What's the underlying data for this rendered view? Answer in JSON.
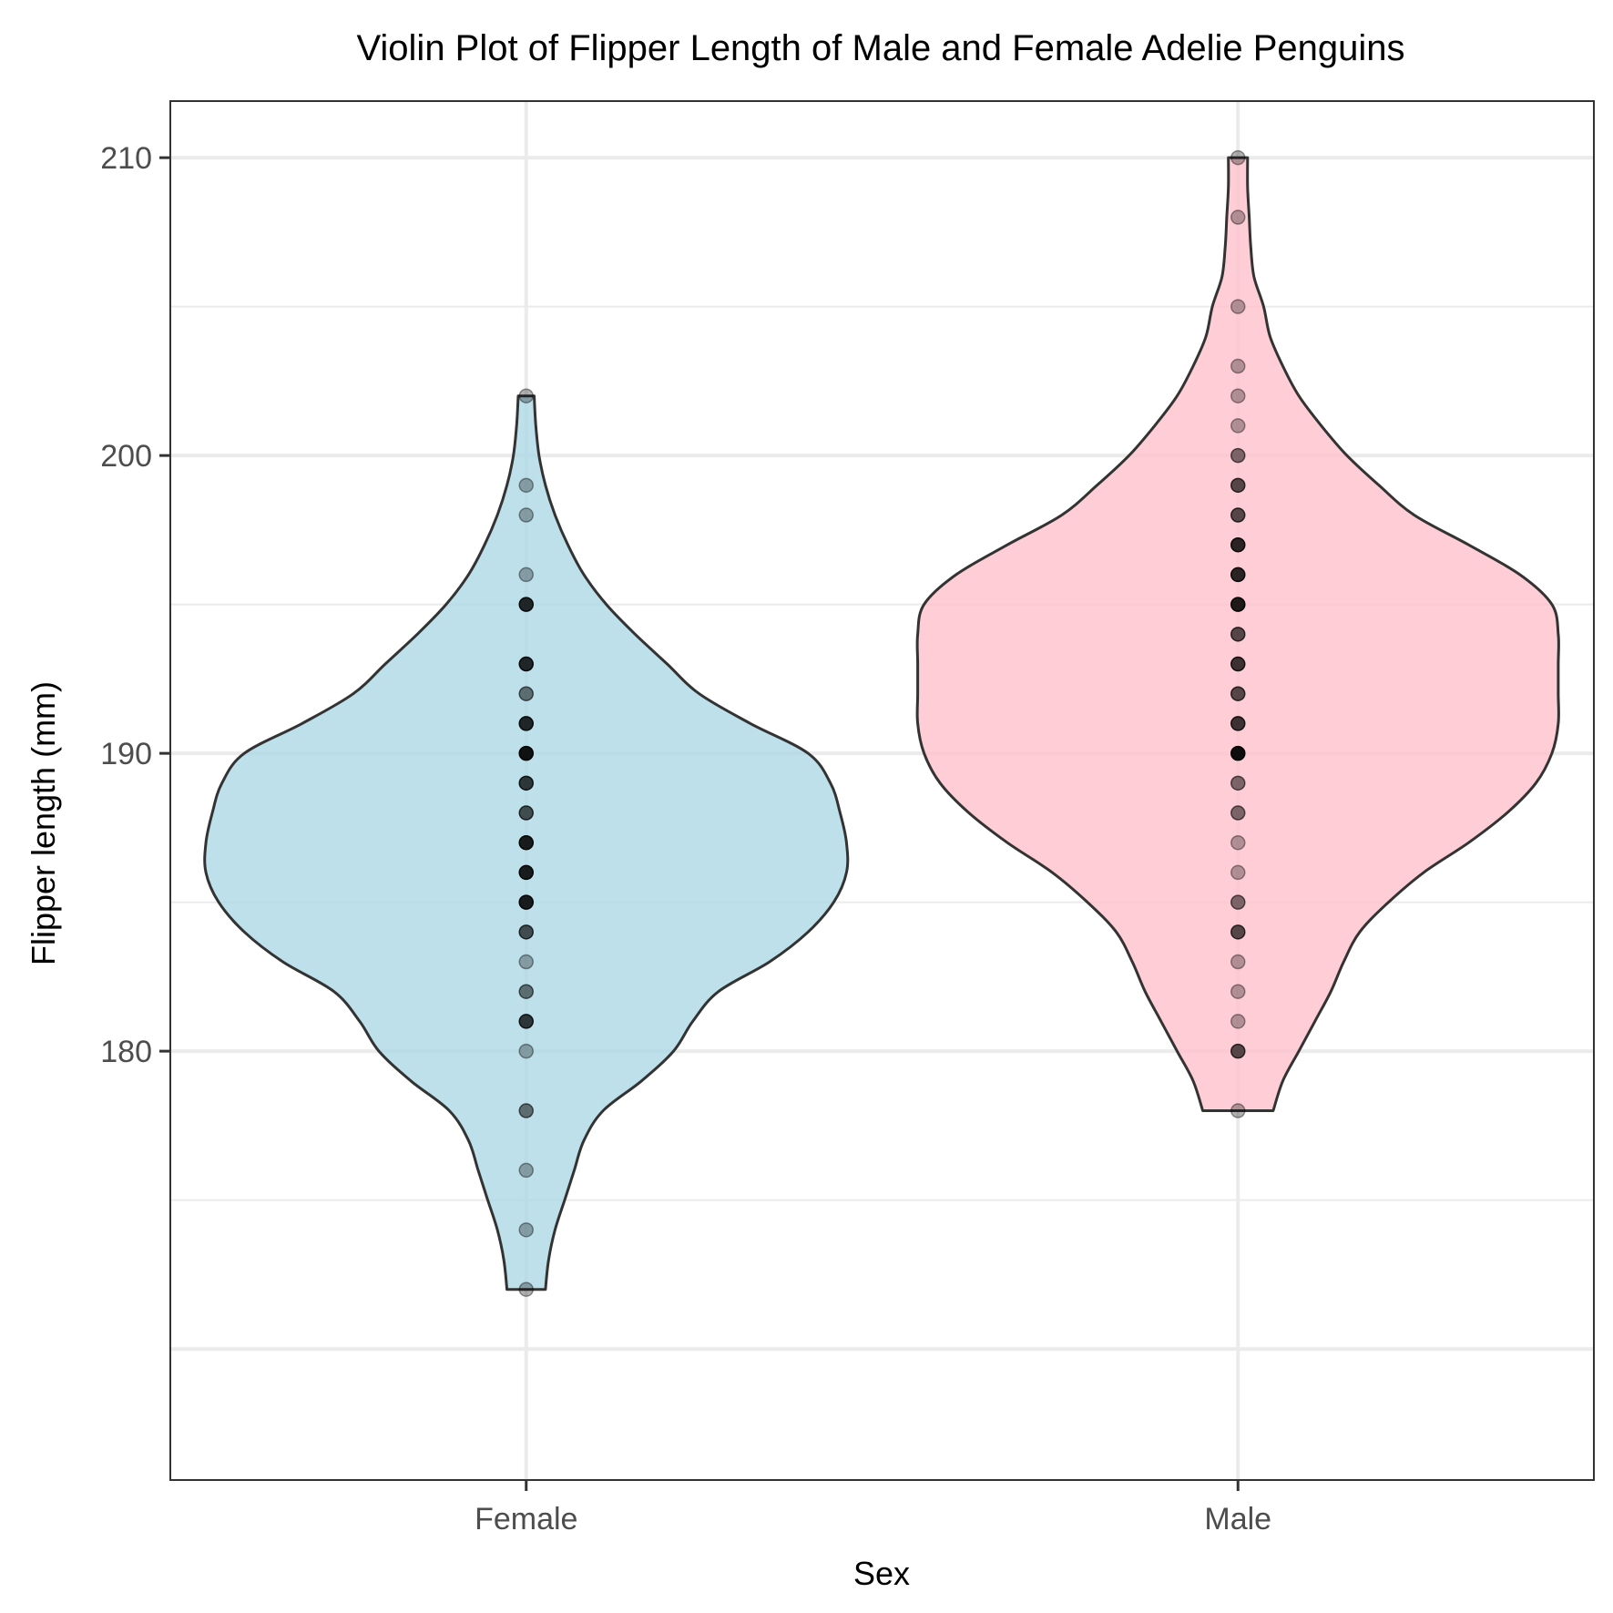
{
  "chart_data": {
    "type": "violin",
    "title": "Violin Plot of Flipper Length of Male and Female Adelie Penguins",
    "xlabel": "Sex",
    "ylabel": "Flipper length (mm)",
    "categories": [
      "Female",
      "Male"
    ],
    "ylim": [
      165.6,
      211.9
    ],
    "y_ticks": [
      180,
      190,
      200,
      210
    ],
    "y_tick_labels": [
      "180",
      "190",
      "200",
      "210"
    ],
    "grid": true,
    "series": [
      {
        "category": "Female",
        "fill": "#add8e6",
        "range": [
          172,
          202
        ],
        "density_profile": [
          [
            172,
            0.06
          ],
          [
            173,
            0.07
          ],
          [
            174,
            0.09
          ],
          [
            175,
            0.12
          ],
          [
            176,
            0.15
          ],
          [
            177,
            0.18
          ],
          [
            178,
            0.24
          ],
          [
            179,
            0.36
          ],
          [
            180,
            0.46
          ],
          [
            181,
            0.52
          ],
          [
            182,
            0.6
          ],
          [
            183,
            0.76
          ],
          [
            184,
            0.88
          ],
          [
            185,
            0.96
          ],
          [
            186,
            1.0
          ],
          [
            187,
            1.0
          ],
          [
            188,
            0.98
          ],
          [
            189,
            0.95
          ],
          [
            190,
            0.88
          ],
          [
            191,
            0.7
          ],
          [
            192,
            0.54
          ],
          [
            193,
            0.44
          ],
          [
            194,
            0.34
          ],
          [
            195,
            0.25
          ],
          [
            196,
            0.18
          ],
          [
            197,
            0.13
          ],
          [
            198,
            0.09
          ],
          [
            199,
            0.06
          ],
          [
            200,
            0.04
          ],
          [
            201,
            0.03
          ],
          [
            202,
            0.025
          ]
        ],
        "points": [
          {
            "y": 202,
            "n": 1
          },
          {
            "y": 199,
            "n": 1
          },
          {
            "y": 198,
            "n": 1
          },
          {
            "y": 196,
            "n": 1
          },
          {
            "y": 195,
            "n": 5
          },
          {
            "y": 193,
            "n": 5
          },
          {
            "y": 192,
            "n": 2
          },
          {
            "y": 191,
            "n": 5
          },
          {
            "y": 190,
            "n": 7
          },
          {
            "y": 189,
            "n": 4
          },
          {
            "y": 188,
            "n": 3
          },
          {
            "y": 187,
            "n": 6
          },
          {
            "y": 186,
            "n": 6
          },
          {
            "y": 185,
            "n": 6
          },
          {
            "y": 184,
            "n": 3
          },
          {
            "y": 183,
            "n": 1
          },
          {
            "y": 182,
            "n": 2
          },
          {
            "y": 181,
            "n": 4
          },
          {
            "y": 180,
            "n": 1
          },
          {
            "y": 178,
            "n": 2
          },
          {
            "y": 176,
            "n": 1
          },
          {
            "y": 174,
            "n": 1
          },
          {
            "y": 172,
            "n": 1
          }
        ]
      },
      {
        "category": "Male",
        "fill": "#ffc0cb",
        "range": [
          178,
          210
        ],
        "density_profile": [
          [
            178,
            0.11
          ],
          [
            179,
            0.14
          ],
          [
            180,
            0.19
          ],
          [
            181,
            0.24
          ],
          [
            182,
            0.29
          ],
          [
            183,
            0.33
          ],
          [
            184,
            0.38
          ],
          [
            185,
            0.47
          ],
          [
            186,
            0.58
          ],
          [
            187,
            0.72
          ],
          [
            188,
            0.84
          ],
          [
            189,
            0.93
          ],
          [
            190,
            0.98
          ],
          [
            191,
            1.0
          ],
          [
            192,
            1.0
          ],
          [
            193,
            1.0
          ],
          [
            194,
            1.0
          ],
          [
            195,
            0.98
          ],
          [
            196,
            0.88
          ],
          [
            197,
            0.72
          ],
          [
            198,
            0.55
          ],
          [
            199,
            0.44
          ],
          [
            200,
            0.34
          ],
          [
            201,
            0.26
          ],
          [
            202,
            0.19
          ],
          [
            203,
            0.14
          ],
          [
            204,
            0.1
          ],
          [
            205,
            0.08
          ],
          [
            206,
            0.05
          ],
          [
            207,
            0.04
          ],
          [
            208,
            0.035
          ],
          [
            209,
            0.03
          ],
          [
            210,
            0.03
          ]
        ],
        "points": [
          {
            "y": 210,
            "n": 1
          },
          {
            "y": 208,
            "n": 1
          },
          {
            "y": 205,
            "n": 1
          },
          {
            "y": 203,
            "n": 1
          },
          {
            "y": 202,
            "n": 1
          },
          {
            "y": 201,
            "n": 1
          },
          {
            "y": 200,
            "n": 2
          },
          {
            "y": 199,
            "n": 3
          },
          {
            "y": 198,
            "n": 3
          },
          {
            "y": 197,
            "n": 5
          },
          {
            "y": 196,
            "n": 5
          },
          {
            "y": 195,
            "n": 6
          },
          {
            "y": 194,
            "n": 3
          },
          {
            "y": 193,
            "n": 4
          },
          {
            "y": 192,
            "n": 3
          },
          {
            "y": 191,
            "n": 4
          },
          {
            "y": 190,
            "n": 8
          },
          {
            "y": 189,
            "n": 2
          },
          {
            "y": 188,
            "n": 2
          },
          {
            "y": 187,
            "n": 1
          },
          {
            "y": 186,
            "n": 1
          },
          {
            "y": 185,
            "n": 2
          },
          {
            "y": 184,
            "n": 3
          },
          {
            "y": 183,
            "n": 1
          },
          {
            "y": 182,
            "n": 1
          },
          {
            "y": 181,
            "n": 1
          },
          {
            "y": 180,
            "n": 3
          },
          {
            "y": 178,
            "n": 1
          }
        ]
      }
    ]
  },
  "style": {
    "panel_border": "#333333",
    "grid_major": "#ebebeb",
    "grid_minor": "#ebebeb",
    "violin_outline": "#333333",
    "tick_label_color": "#4d4d4d",
    "point_color": "#000000"
  }
}
